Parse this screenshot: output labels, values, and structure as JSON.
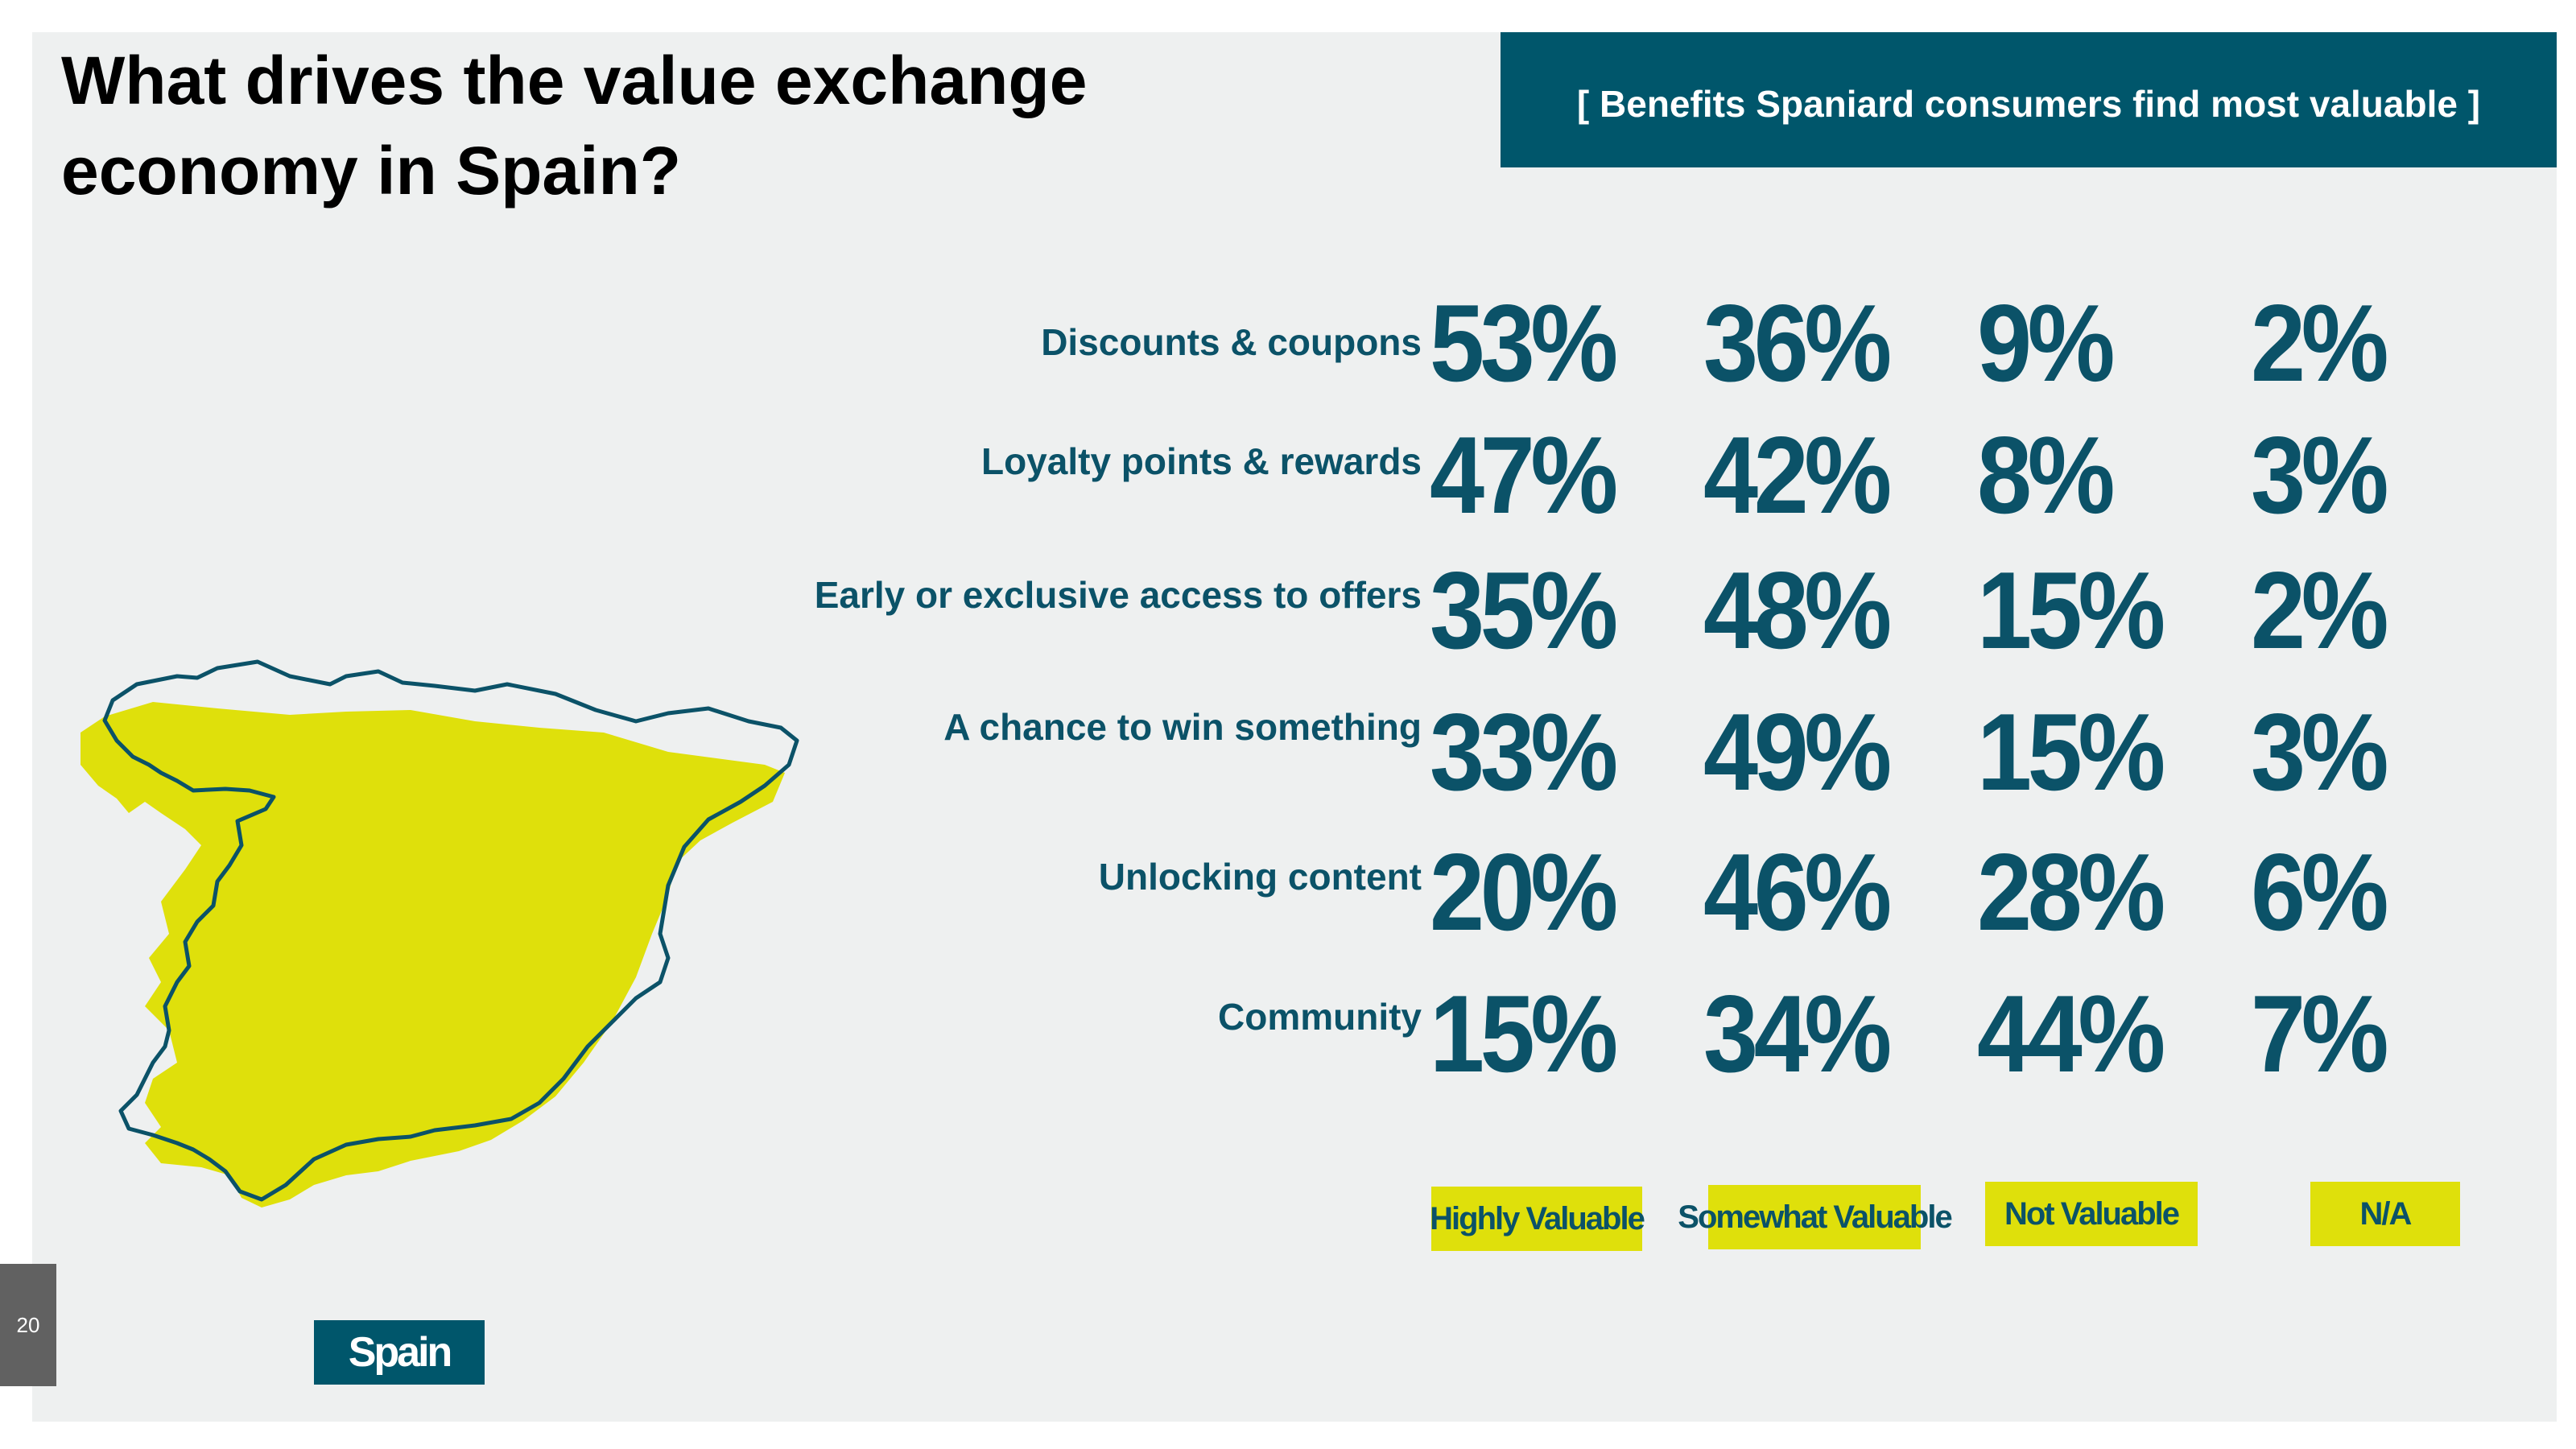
{
  "title_line1": "What drives the value exchange",
  "title_line2": "economy in Spain?",
  "banner": "[ Benefits Spaniard consumers find most valuable ]",
  "page_number": "20",
  "country_label": "Spain",
  "colors": {
    "teal": "#00566b",
    "text_teal": "#0b5268",
    "yellow": "#dfe00b",
    "background": "#eef0f0"
  },
  "chart_data": {
    "type": "table",
    "title": "Benefits Spaniard consumers find most valuable",
    "columns": [
      "Highly Valuable",
      "Somewhat Valuable",
      "Not Valuable",
      "N/A"
    ],
    "rows": [
      {
        "label": "Discounts & coupons",
        "values": [
          "53%",
          "36%",
          "9%",
          "2%"
        ]
      },
      {
        "label": "Loyalty points & rewards",
        "values": [
          "47%",
          "42%",
          "8%",
          "3%"
        ]
      },
      {
        "label": "Early or exclusive access to offers",
        "values": [
          "35%",
          "48%",
          "15%",
          "2%"
        ]
      },
      {
        "label": "A chance to win something",
        "values": [
          "33%",
          "49%",
          "15%",
          "3%"
        ]
      },
      {
        "label": "Unlocking content",
        "values": [
          "20%",
          "46%",
          "28%",
          "6%"
        ]
      },
      {
        "label": "Community",
        "values": [
          "15%",
          "34%",
          "44%",
          "7%"
        ]
      }
    ]
  }
}
